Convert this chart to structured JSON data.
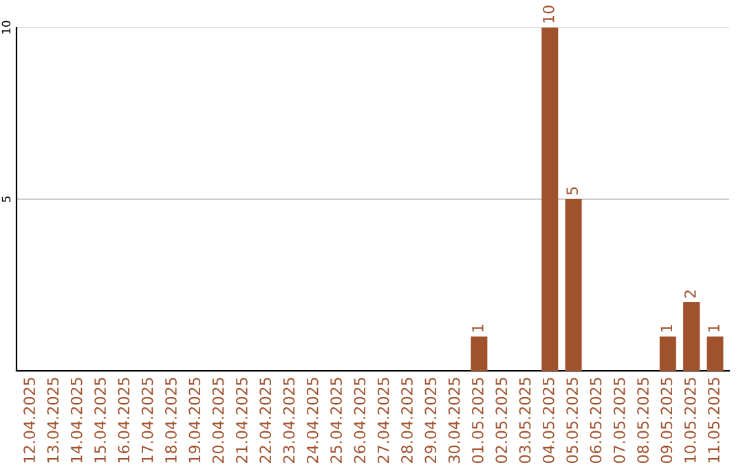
{
  "chart_data": {
    "type": "bar",
    "categories": [
      "12.04.2025",
      "13.04.2025",
      "14.04.2025",
      "15.04.2025",
      "16.04.2025",
      "17.04.2025",
      "18.04.2025",
      "19.04.2025",
      "20.04.2025",
      "21.04.2025",
      "22.04.2025",
      "23.04.2025",
      "24.04.2025",
      "25.04.2025",
      "26.04.2025",
      "27.04.2025",
      "28.04.2025",
      "29.04.2025",
      "30.04.2025",
      "01.05.2025",
      "02.05.2025",
      "03.05.2025",
      "04.05.2025",
      "05.05.2025",
      "06.05.2025",
      "07.05.2025",
      "08.05.2025",
      "09.05.2025",
      "10.05.2025",
      "11.05.2025"
    ],
    "values": [
      0,
      0,
      0,
      0,
      0,
      0,
      0,
      0,
      0,
      0,
      0,
      0,
      0,
      0,
      0,
      0,
      0,
      0,
      0,
      1,
      0,
      0,
      10,
      5,
      0,
      0,
      0,
      1,
      2,
      1
    ],
    "value_labels": [
      null,
      null,
      null,
      null,
      null,
      null,
      null,
      null,
      null,
      null,
      null,
      null,
      null,
      null,
      null,
      null,
      null,
      null,
      null,
      "1",
      null,
      null,
      "10",
      "5",
      null,
      null,
      null,
      "1",
      "2",
      "1"
    ],
    "color": "#a0522d",
    "ylim": [
      0,
      10
    ],
    "yticks": [
      5,
      10
    ],
    "grid": "y"
  }
}
